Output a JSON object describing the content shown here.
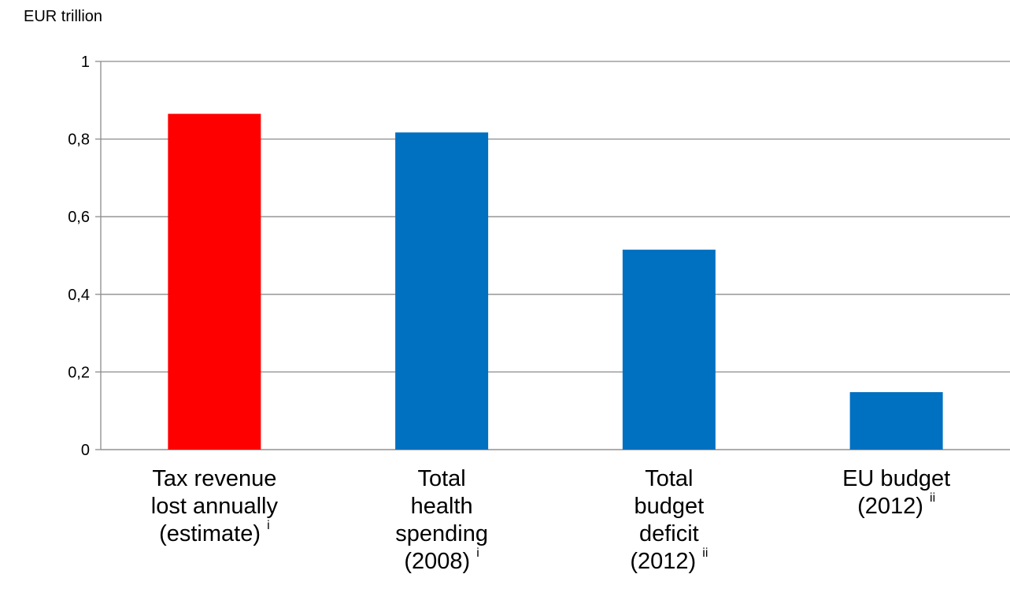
{
  "chart_data": {
    "type": "bar",
    "ylabel": "EUR trillion",
    "ylim": [
      0,
      1
    ],
    "yticks": [
      "0",
      "0,2",
      "0,4",
      "0,6",
      "0,8",
      "1"
    ],
    "grid": true,
    "categories": [
      {
        "lines": [
          "Tax revenue",
          "lost annually",
          "(estimate)"
        ],
        "note": "i"
      },
      {
        "lines": [
          "Total",
          "health",
          "spending",
          "(2008)"
        ],
        "note": "i"
      },
      {
        "lines": [
          "Total",
          "budget",
          "deficit",
          "(2012)"
        ],
        "note": "ii"
      },
      {
        "lines": [
          "EU budget",
          "(2012)"
        ],
        "note": "ii"
      }
    ],
    "values": [
      0.865,
      0.817,
      0.515,
      0.148
    ],
    "colors": [
      "#ff0000",
      "#0070c0",
      "#0070c0",
      "#0070c0"
    ]
  }
}
